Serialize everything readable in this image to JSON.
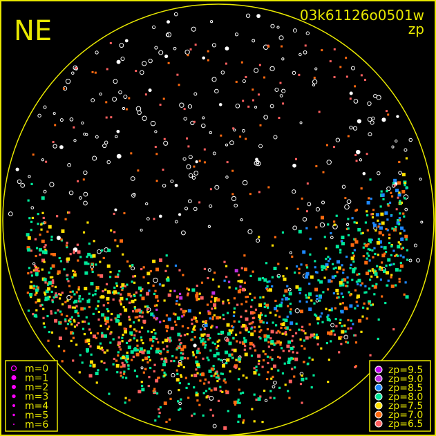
{
  "direction_label": "NE",
  "frame_id": "03k61126o0501w",
  "mode_label": "zp",
  "magnitude_legend": [
    "m=0",
    "m=1",
    "m=2",
    "m=3",
    "m=4",
    "m=5",
    "m=6"
  ],
  "zp_legend": [
    {
      "label": "zp=9.5",
      "color": "#c000f0"
    },
    {
      "label": "zp=9.0",
      "color": "#c030e0"
    },
    {
      "label": "zp=8.5",
      "color": "#1e88ff"
    },
    {
      "label": "zp=8.0",
      "color": "#00e89a"
    },
    {
      "label": "zp=7.5",
      "color": "#ffe000"
    },
    {
      "label": "zp=7.0",
      "color": "#ff6a10"
    },
    {
      "label": "zp=6.5",
      "color": "#ff6060"
    }
  ],
  "colors": {
    "frame": "#e8e800",
    "legend_marker": "#ff00ff",
    "star_unmeasured": "#ffffff"
  }
}
